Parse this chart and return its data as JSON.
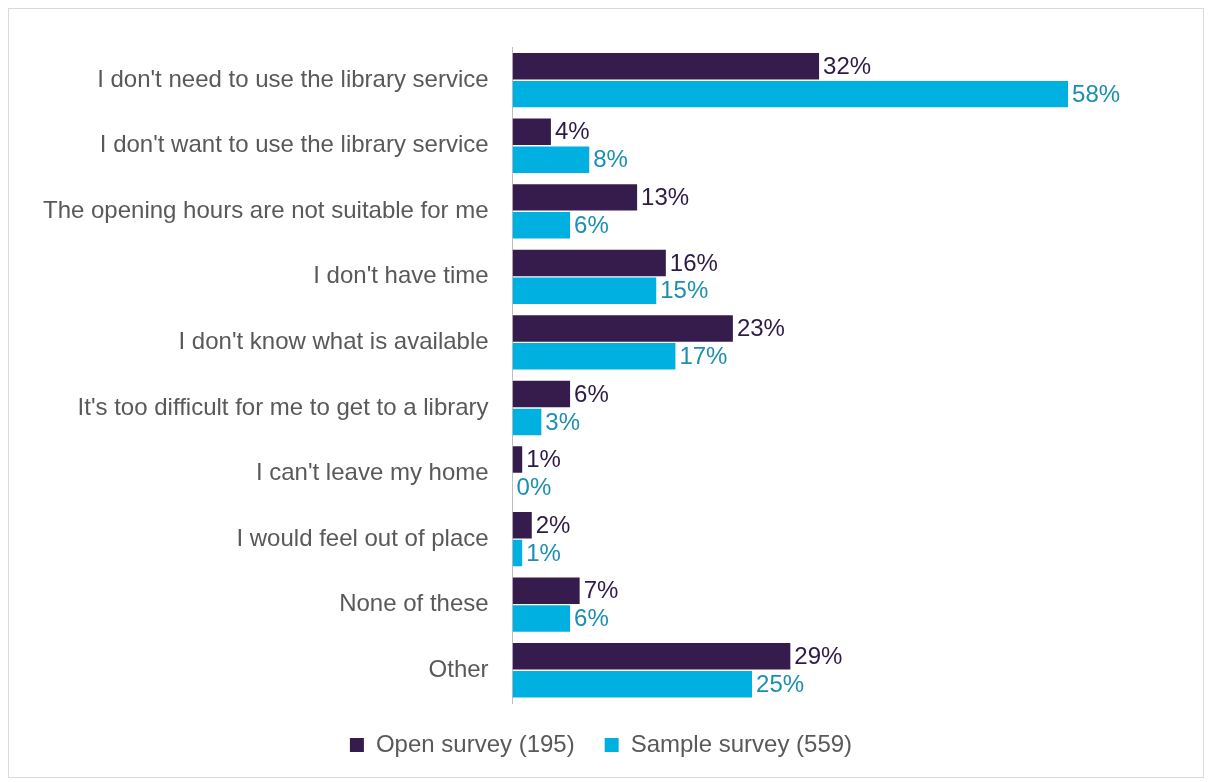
{
  "chart_data": {
    "type": "bar",
    "orientation": "horizontal",
    "categories": [
      "I don't need to use the library service",
      "I don't want to use the library service",
      "The opening hours are not suitable for me",
      "I don't have time",
      "I don't know what is available",
      "It's too difficult for me to get to a library",
      "I can't leave my home",
      "I would feel out of place",
      "None of these",
      "Other"
    ],
    "series": [
      {
        "name": "Open survey (195)",
        "color": "#361c4c",
        "values": [
          32,
          4,
          13,
          16,
          23,
          6,
          1,
          2,
          7,
          29
        ],
        "value_labels": [
          "32%",
          "4%",
          "13%",
          "16%",
          "23%",
          "6%",
          "1%",
          "2%",
          "7%",
          "29%"
        ]
      },
      {
        "name": "Sample survey (559)",
        "color": "#00b0e0",
        "values": [
          58,
          8,
          6,
          15,
          17,
          3,
          0,
          1,
          6,
          25
        ],
        "value_labels": [
          "58%",
          "8%",
          "6%",
          "15%",
          "17%",
          "3%",
          "0%",
          "1%",
          "6%",
          "25%"
        ]
      }
    ],
    "legend": "bottom"
  }
}
